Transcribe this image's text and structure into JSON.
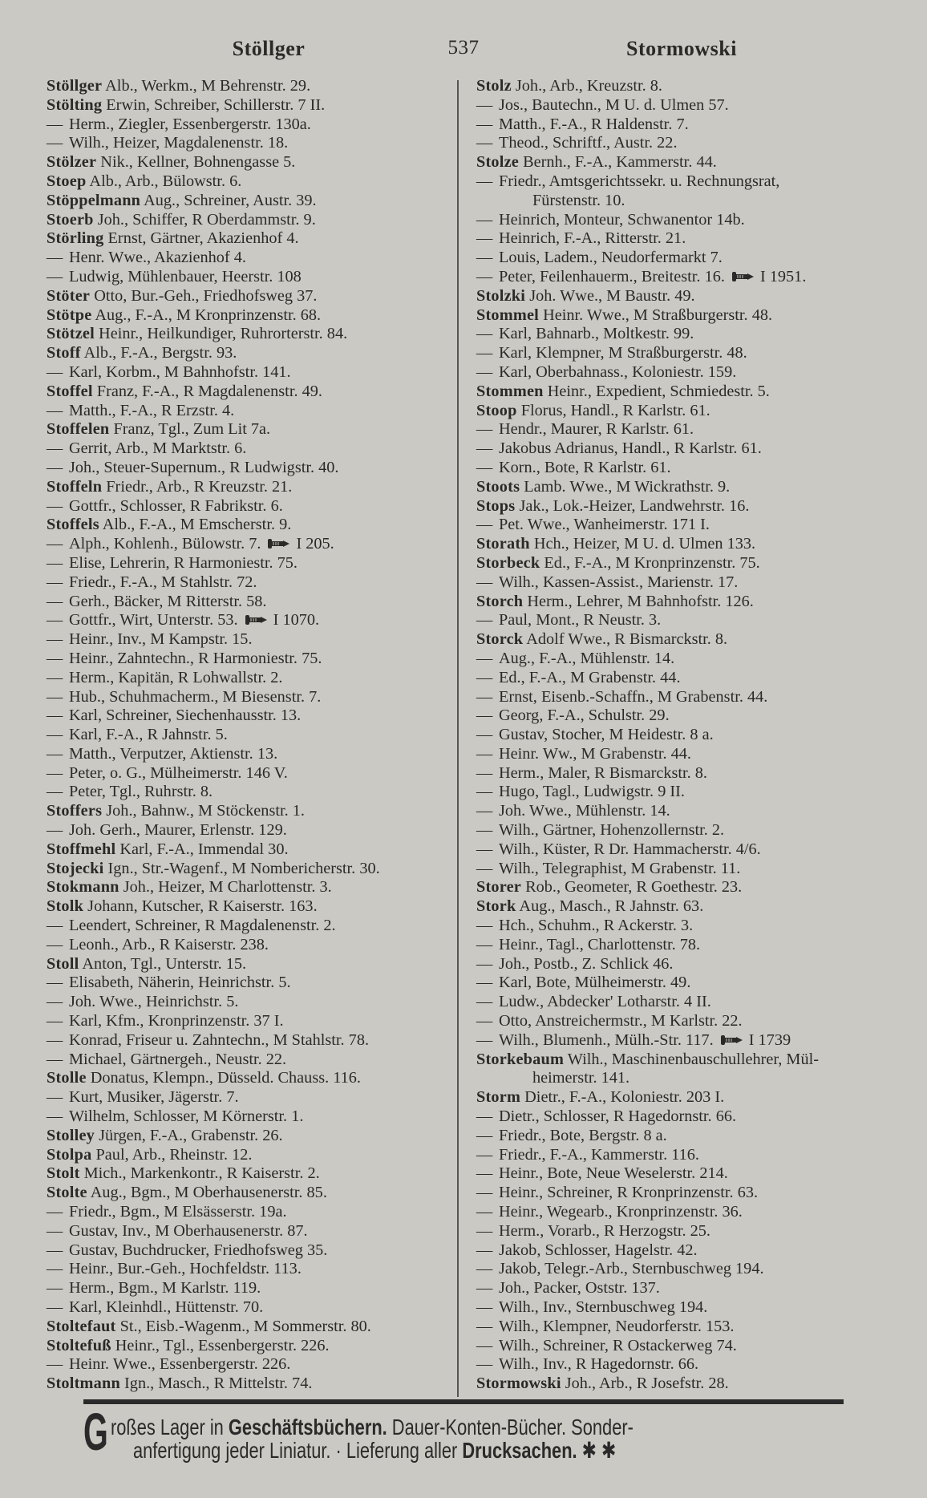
{
  "header": {
    "left_word": "Stöllger",
    "page_number": "537",
    "right_word": "Stormowski"
  },
  "left_column": [
    {
      "name": "Stöllger",
      "rest": "Alb., Werkm., M Behrenstr. 29."
    },
    {
      "name": "Stölting",
      "rest": "Erwin, Schreiber, Schillerstr. 7 II."
    },
    {
      "dash": true,
      "rest": "Herm., Ziegler, Essenbergerstr. 130a."
    },
    {
      "dash": true,
      "rest": "Wilh., Heizer, Magdalenenstr. 18."
    },
    {
      "name": "Stölzer",
      "rest": "Nik., Kellner, Bohnengasse 5."
    },
    {
      "name": "Stoep",
      "rest": "Alb., Arb., Bülowstr. 6."
    },
    {
      "name": "Stöppelmann",
      "rest": "Aug., Schreiner, Austr. 39."
    },
    {
      "name": "Stoerb",
      "rest": "Joh., Schiffer, R Oberdammstr. 9."
    },
    {
      "name": "Störling",
      "rest": "Ernst, Gärtner, Akazienhof 4."
    },
    {
      "dash": true,
      "rest": "Henr. Wwe., Akazienhof 4."
    },
    {
      "dash": true,
      "rest": "Ludwig, Mühlenbauer, Heerstr. 108"
    },
    {
      "name": "Stöter",
      "rest": "Otto, Bur.-Geh., Friedhofsweg 37."
    },
    {
      "name": "Stötpe",
      "rest": "Aug., F.-A., M Kronprinzenstr. 68."
    },
    {
      "name": "Stötzel",
      "rest": "Heinr., Heilkundiger, Ruhrorterstr. 84."
    },
    {
      "name": "Stoff",
      "rest": "Alb., F.-A., Bergstr. 93."
    },
    {
      "dash": true,
      "rest": "Karl, Korbm., M Bahnhofstr. 141."
    },
    {
      "name": "Stoffel",
      "rest": "Franz, F.-A., R Magdalenenstr. 49."
    },
    {
      "dash": true,
      "rest": "Matth., F.-A., R Erzstr. 4."
    },
    {
      "name": "Stoffelen",
      "rest": "Franz, Tgl., Zum Lit 7a."
    },
    {
      "dash": true,
      "rest": "Gerrit, Arb., M Marktstr. 6."
    },
    {
      "dash": true,
      "rest": "Joh., Steuer-Supernum., R Ludwigstr. 40."
    },
    {
      "name": "Stoffeln",
      "rest": "Friedr., Arb., R Kreuzstr. 21."
    },
    {
      "dash": true,
      "rest": "Gottfr., Schlosser, R Fabrikstr. 6."
    },
    {
      "name": "Stoffels",
      "rest": "Alb., F.-A., M Emscherstr. 9."
    },
    {
      "dash": true,
      "rest": "Alph., Kohlenh., Bülowstr. 7.",
      "phone": "I 205."
    },
    {
      "dash": true,
      "rest": "Elise, Lehrerin, R Harmoniestr. 75."
    },
    {
      "dash": true,
      "rest": "Friedr., F.-A., M Stahlstr. 72."
    },
    {
      "dash": true,
      "rest": "Gerh., Bäcker, M Ritterstr. 58."
    },
    {
      "dash": true,
      "rest": "Gottfr., Wirt, Unterstr. 53.",
      "phone": "I 1070."
    },
    {
      "dash": true,
      "rest": "Heinr., Inv., M Kampstr. 15."
    },
    {
      "dash": true,
      "rest": "Heinr., Zahntechn., R Harmoniestr. 75."
    },
    {
      "dash": true,
      "rest": "Herm., Kapitän, R Lohwallstr. 2."
    },
    {
      "dash": true,
      "rest": "Hub., Schuhmacherm., M Biesenstr. 7."
    },
    {
      "dash": true,
      "rest": "Karl, Schreiner, Siechenhausstr. 13."
    },
    {
      "dash": true,
      "rest": "Karl, F.-A., R Jahnstr. 5."
    },
    {
      "dash": true,
      "rest": "Matth., Verputzer, Aktienstr. 13."
    },
    {
      "dash": true,
      "rest": "Peter, o. G., Mülheimerstr. 146 V."
    },
    {
      "dash": true,
      "rest": "Peter, Tgl., Ruhrstr. 8."
    },
    {
      "name": "Stoffers",
      "rest": "Joh., Bahnw., M Stöckenstr. 1."
    },
    {
      "dash": true,
      "rest": "Joh. Gerh., Maurer, Erlenstr. 129."
    },
    {
      "name": "Stoffmehl",
      "rest": "Karl, F.-A., Immendal 30."
    },
    {
      "name": "Stojecki",
      "rest": "Ign., Str.-Wagenf., M Nombericherstr. 30."
    },
    {
      "name": "Stokmann",
      "rest": "Joh., Heizer, M Charlottenstr. 3."
    },
    {
      "name": "Stolk",
      "rest": "Johann, Kutscher, R Kaiserstr. 163."
    },
    {
      "dash": true,
      "rest": "Leendert, Schreiner, R Magdalenenstr. 2."
    },
    {
      "dash": true,
      "rest": "Leonh., Arb., R Kaiserstr. 238."
    },
    {
      "name": "Stoll",
      "rest": "Anton, Tgl., Unterstr. 15."
    },
    {
      "dash": true,
      "rest": "Elisabeth, Näherin, Heinrichstr. 5."
    },
    {
      "dash": true,
      "rest": "Joh. Wwe., Heinrichstr. 5."
    },
    {
      "dash": true,
      "rest": "Karl, Kfm., Kronprinzenstr. 37 I."
    },
    {
      "dash": true,
      "rest": "Konrad, Friseur u. Zahntechn., M Stahlstr. 78."
    },
    {
      "dash": true,
      "rest": "Michael, Gärtnergeh., Neustr. 22."
    },
    {
      "name": "Stolle",
      "rest": "Donatus, Klempn., Düsseld. Chauss. 116."
    },
    {
      "dash": true,
      "rest": "Kurt, Musiker, Jägerstr. 7."
    },
    {
      "dash": true,
      "rest": "Wilhelm, Schlosser, M Körnerstr. 1."
    },
    {
      "name": "Stolley",
      "rest": "Jürgen, F.-A., Grabenstr. 26."
    },
    {
      "name": "Stolpa",
      "rest": "Paul, Arb., Rheinstr. 12."
    },
    {
      "name": "Stolt",
      "rest": "Mich., Markenkontr., R Kaiserstr. 2."
    },
    {
      "name": "Stolte",
      "rest": "Aug., Bgm., M Oberhausenerstr. 85."
    },
    {
      "dash": true,
      "rest": "Friedr., Bgm., M Elsässerstr. 19a."
    },
    {
      "dash": true,
      "rest": "Gustav, Inv., M Oberhausenerstr. 87."
    },
    {
      "dash": true,
      "rest": "Gustav, Buchdrucker, Friedhofsweg 35."
    },
    {
      "dash": true,
      "rest": "Heinr., Bur.-Geh., Hochfeldstr. 113."
    },
    {
      "dash": true,
      "rest": "Herm., Bgm., M Karlstr. 119."
    },
    {
      "dash": true,
      "rest": "Karl, Kleinhdl., Hüttenstr. 70."
    },
    {
      "name": "Stoltefaut",
      "rest": "St., Eisb.-Wagenm., M Sommerstr. 80."
    },
    {
      "name": "Stoltefuß",
      "rest": "Heinr., Tgl., Essenbergerstr. 226."
    },
    {
      "dash": true,
      "rest": "Heinr. Wwe., Essenbergerstr. 226."
    },
    {
      "name": "Stoltmann",
      "rest": "Ign., Masch., R Mittelstr. 74."
    }
  ],
  "right_column": [
    {
      "name": "Stolz",
      "rest": "Joh., Arb., Kreuzstr. 8."
    },
    {
      "dash": true,
      "rest": "Jos., Bautechn., M U. d. Ulmen 57."
    },
    {
      "dash": true,
      "rest": "Matth., F.-A., R Haldenstr. 7."
    },
    {
      "dash": true,
      "rest": "Theod., Schriftf., Austr. 22."
    },
    {
      "name": "Stolze",
      "rest": "Bernh., F.-A., Kammerstr. 44."
    },
    {
      "dash": true,
      "rest": "Friedr., Amtsgerichtssekr. u. Rechnungsrat,"
    },
    {
      "cont": true,
      "rest": "Fürstenstr. 10."
    },
    {
      "dash": true,
      "rest": "Heinrich, Monteur, Schwanentor 14b."
    },
    {
      "dash": true,
      "rest": "Heinrich, F.-A., Ritterstr. 21."
    },
    {
      "dash": true,
      "rest": "Louis, Ladem., Neudorfermarkt 7."
    },
    {
      "dash": true,
      "rest": "Peter, Feilenhauerm., Breitestr. 16.",
      "phone": "I 1951."
    },
    {
      "name": "Stolzki",
      "rest": "Joh. Wwe., M Baustr. 49."
    },
    {
      "name": "Stommel",
      "rest": "Heinr. Wwe., M Straßburgerstr. 48."
    },
    {
      "dash": true,
      "rest": "Karl, Bahnarb., Moltkestr. 99."
    },
    {
      "dash": true,
      "rest": "Karl, Klempner, M Straßburgerstr. 48."
    },
    {
      "dash": true,
      "rest": "Karl, Oberbahnass., Koloniestr. 159."
    },
    {
      "name": "Stommen",
      "rest": "Heinr., Expedient, Schmiedestr. 5."
    },
    {
      "name": "Stoop",
      "rest": "Florus, Handl., R Karlstr. 61."
    },
    {
      "dash": true,
      "rest": "Hendr., Maurer, R Karlstr. 61."
    },
    {
      "dash": true,
      "rest": "Jakobus Adrianus, Handl., R Karlstr. 61."
    },
    {
      "dash": true,
      "rest": "Korn., Bote, R Karlstr. 61."
    },
    {
      "name": "Stoots",
      "rest": "Lamb. Wwe., M Wickrathstr. 9."
    },
    {
      "name": "Stops",
      "rest": "Jak., Lok.-Heizer, Landwehrstr. 16."
    },
    {
      "dash": true,
      "rest": "Pet. Wwe., Wanheimerstr. 171 I."
    },
    {
      "name": "Storath",
      "rest": "Hch., Heizer, M U. d. Ulmen 133."
    },
    {
      "name": "Storbeck",
      "rest": "Ed., F.-A., M Kronprinzenstr. 75."
    },
    {
      "dash": true,
      "rest": "Wilh., Kassen-Assist., Marienstr. 17."
    },
    {
      "name": "Storch",
      "rest": "Herm., Lehrer, M Bahnhofstr. 126."
    },
    {
      "dash": true,
      "rest": "Paul, Mont., R Neustr. 3."
    },
    {
      "name": "Storck",
      "rest": "Adolf Wwe., R Bismarckstr. 8."
    },
    {
      "dash": true,
      "rest": "Aug., F.-A., Mühlenstr. 14."
    },
    {
      "dash": true,
      "rest": "Ed., F.-A., M Grabenstr. 44."
    },
    {
      "dash": true,
      "rest": "Ernst, Eisenb.-Schaffn., M Grabenstr. 44."
    },
    {
      "dash": true,
      "rest": "Georg, F.-A., Schulstr. 29."
    },
    {
      "dash": true,
      "rest": "Gustav, Stocher, M Heidestr. 8 a."
    },
    {
      "dash": true,
      "rest": "Heinr. Ww., M Grabenstr. 44."
    },
    {
      "dash": true,
      "rest": "Herm., Maler, R Bismarckstr. 8."
    },
    {
      "dash": true,
      "rest": "Hugo, Tagl., Ludwigstr. 9 II."
    },
    {
      "dash": true,
      "rest": "Joh. Wwe., Mühlenstr. 14."
    },
    {
      "dash": true,
      "rest": "Wilh., Gärtner, Hohenzollernstr. 2."
    },
    {
      "dash": true,
      "rest": "Wilh., Küster, R Dr. Hammacherstr. 4/6."
    },
    {
      "dash": true,
      "rest": "Wilh., Telegraphist, M Grabenstr. 11."
    },
    {
      "name": "Storer",
      "rest": "Rob., Geometer, R Goethestr. 23."
    },
    {
      "name": "Stork",
      "rest": "Aug., Masch., R Jahnstr. 63."
    },
    {
      "dash": true,
      "rest": "Hch., Schuhm., R Ackerstr. 3."
    },
    {
      "dash": true,
      "rest": "Heinr., Tagl., Charlottenstr. 78."
    },
    {
      "dash": true,
      "rest": "Joh., Postb., Z. Schlick 46."
    },
    {
      "dash": true,
      "rest": "Karl, Bote, Mülheimerstr. 49."
    },
    {
      "dash": true,
      "rest": "Ludw., Abdecker' Lotharstr. 4 II."
    },
    {
      "dash": true,
      "rest": "Otto, Anstreichermstr., M Karlstr. 22."
    },
    {
      "dash": true,
      "rest": "Wilh., Blumenh., Mülh.-Str. 117.",
      "phone": "I 1739"
    },
    {
      "name": "Storkebaum",
      "rest": "Wilh., Maschinenbauschullehrer, Mül-"
    },
    {
      "cont": true,
      "rest": "heimerstr. 141."
    },
    {
      "name": "Storm",
      "rest": "Dietr., F.-A., Koloniestr. 203 I."
    },
    {
      "dash": true,
      "rest": "Dietr., Schlosser, R Hagedornstr. 66."
    },
    {
      "dash": true,
      "rest": "Friedr., Bote, Bergstr. 8 a."
    },
    {
      "dash": true,
      "rest": "Friedr., F.-A., Kammerstr. 116."
    },
    {
      "dash": true,
      "rest": "Heinr., Bote, Neue Weselerstr. 214."
    },
    {
      "dash": true,
      "rest": "Heinr., Schreiner, R Kronprinzenstr. 63."
    },
    {
      "dash": true,
      "rest": "Heinr., Wegearb., Kronprinzenstr. 36."
    },
    {
      "dash": true,
      "rest": "Herm., Vorarb., R Herzogstr. 25."
    },
    {
      "dash": true,
      "rest": "Jakob, Schlosser, Hagelstr. 42."
    },
    {
      "dash": true,
      "rest": "Jakob, Telegr.-Arb., Sternbuschweg 194."
    },
    {
      "dash": true,
      "rest": "Joh., Packer, Oststr. 137."
    },
    {
      "dash": true,
      "rest": "Wilh., Inv., Sternbuschweg 194."
    },
    {
      "dash": true,
      "rest": "Wilh., Klempner, Neudorferstr. 153."
    },
    {
      "dash": true,
      "rest": "Wilh., Schreiner, R Ostackerweg 74."
    },
    {
      "dash": true,
      "rest": "Wilh., Inv., R Hagedornstr. 66."
    },
    {
      "name": "Stormowski",
      "rest": "Joh., Arb., R Josefstr. 28."
    }
  ],
  "dash_glyph": "—",
  "advertisement": {
    "initial": "G",
    "line1_a": "roßes Lager in ",
    "line1_b": "Geschäftsbüchern.",
    "line1_c": " Dauer-Konten-Bücher. Sonder-",
    "line2_a": "anfertigung jeder Liniatur. · Lieferung aller ",
    "line2_b": "Drucksachen.",
    "line2_c": " ✱ ✱"
  }
}
